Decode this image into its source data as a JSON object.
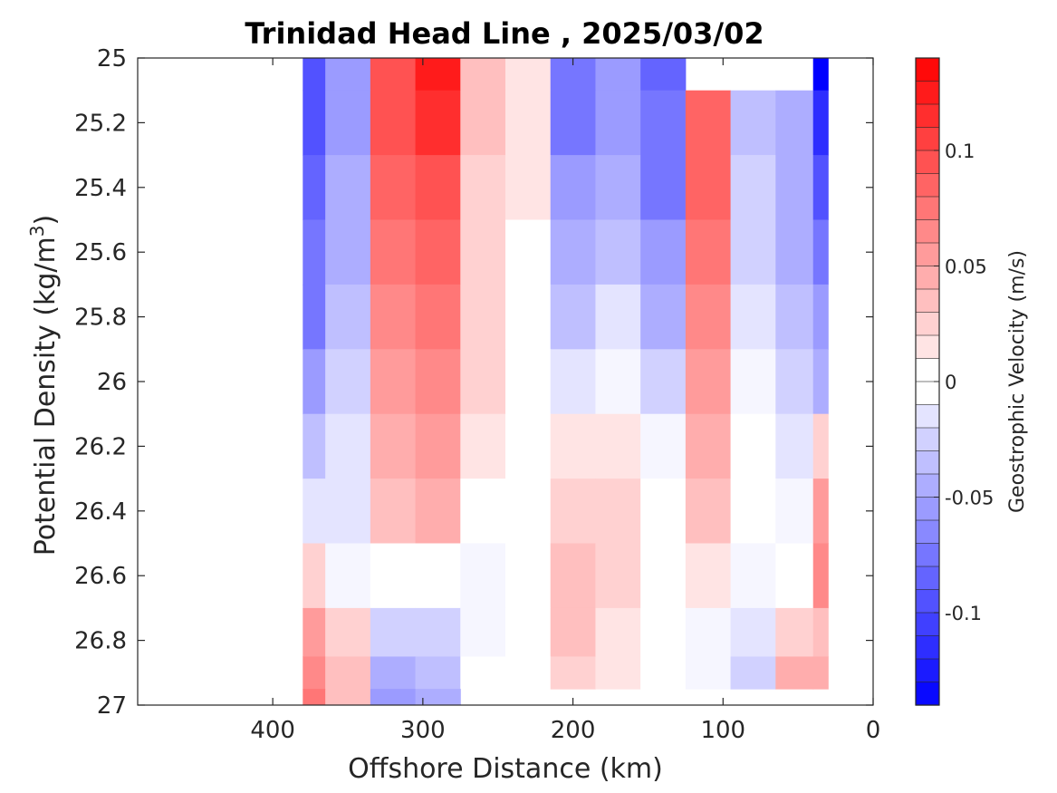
{
  "chart_data": {
    "type": "heatmap",
    "title": "Trinidad Head Line , 2025/03/02",
    "xlabel": "Offshore Distance (km)",
    "ylabel": "Potential Density (kg/m",
    "ylabel_sup": "3",
    "ylabel_end": ")",
    "xlim": [
      490,
      0
    ],
    "x_reversed": true,
    "ylim": [
      25,
      27
    ],
    "y_reversed": true,
    "xticks": [
      400,
      300,
      200,
      100,
      0
    ],
    "xtick_labels": [
      "400",
      "300",
      "200",
      "100",
      "0"
    ],
    "yticks": [
      25,
      25.2,
      25.4,
      25.6,
      25.8,
      26,
      26.2,
      26.4,
      26.6,
      26.8,
      27
    ],
    "ytick_labels": [
      "25",
      "25.2",
      "25.4",
      "25.6",
      "25.8",
      "26",
      "26.2",
      "26.4",
      "26.6",
      "26.8",
      "27"
    ],
    "colorbar": {
      "label": "Geostrophic Velocity (m/s)",
      "range": [
        -0.14,
        0.14
      ],
      "step": 0.01,
      "ticks": [
        0.1,
        0.05,
        0,
        -0.05,
        -0.1
      ],
      "tick_labels": [
        "0.1",
        "0.05",
        "0",
        "-0.05",
        "-0.1"
      ],
      "colormap": "blue-white-red",
      "neg_color": "#0000ff",
      "pos_color": "#ff0000",
      "zero_color": "#ffffff"
    },
    "x": [
      380,
      350,
      320,
      290,
      260,
      230,
      200,
      170,
      140,
      110,
      80,
      50,
      30
    ],
    "y": [
      25.0,
      25.2,
      25.4,
      25.6,
      25.8,
      26.0,
      26.2,
      26.4,
      26.6,
      26.8,
      26.9,
      27.0
    ],
    "z": [
      [
        -0.1,
        -0.06,
        0.09,
        0.12,
        0.03,
        0.01,
        -0.08,
        -0.06,
        -0.09,
        null,
        null,
        null,
        -0.14
      ],
      [
        -0.1,
        -0.06,
        0.09,
        0.11,
        0.03,
        0.01,
        -0.07,
        -0.06,
        -0.08,
        0.08,
        -0.04,
        -0.05,
        -0.12
      ],
      [
        -0.09,
        -0.05,
        0.08,
        0.09,
        0.02,
        0.01,
        -0.06,
        -0.05,
        -0.07,
        0.08,
        -0.03,
        -0.05,
        -0.1
      ],
      [
        -0.08,
        -0.05,
        0.07,
        0.08,
        0.02,
        0.0,
        -0.05,
        -0.04,
        -0.06,
        0.07,
        -0.03,
        -0.05,
        -0.08
      ],
      [
        -0.07,
        -0.04,
        0.06,
        0.07,
        0.02,
        0.0,
        -0.04,
        -0.02,
        -0.05,
        0.06,
        -0.02,
        -0.04,
        -0.06
      ],
      [
        -0.06,
        -0.03,
        0.05,
        0.06,
        0.02,
        0.0,
        -0.02,
        -0.01,
        -0.03,
        0.05,
        -0.01,
        -0.03,
        -0.05
      ],
      [
        -0.04,
        -0.02,
        0.04,
        0.05,
        0.01,
        0.0,
        0.01,
        0.01,
        -0.01,
        0.04,
        0.0,
        -0.02,
        0.02
      ],
      [
        -0.02,
        -0.02,
        0.03,
        0.04,
        0.0,
        0.0,
        0.02,
        0.02,
        0.0,
        0.03,
        0.0,
        -0.01,
        0.05
      ],
      [
        0.02,
        -0.01,
        0.0,
        0.0,
        -0.01,
        0.0,
        0.03,
        0.02,
        0.0,
        0.01,
        -0.01,
        0.0,
        0.06
      ],
      [
        0.05,
        0.02,
        -0.03,
        -0.03,
        -0.01,
        0.0,
        0.03,
        0.01,
        0.0,
        -0.01,
        -0.02,
        0.02,
        0.03
      ],
      [
        0.06,
        0.03,
        -0.05,
        -0.04,
        0.0,
        0.0,
        0.02,
        0.01,
        0.0,
        -0.01,
        -0.03,
        0.04,
        0.04
      ],
      [
        0.07,
        0.03,
        -0.06,
        -0.05,
        null,
        null,
        null,
        null,
        null,
        null,
        null,
        null,
        null
      ]
    ]
  }
}
